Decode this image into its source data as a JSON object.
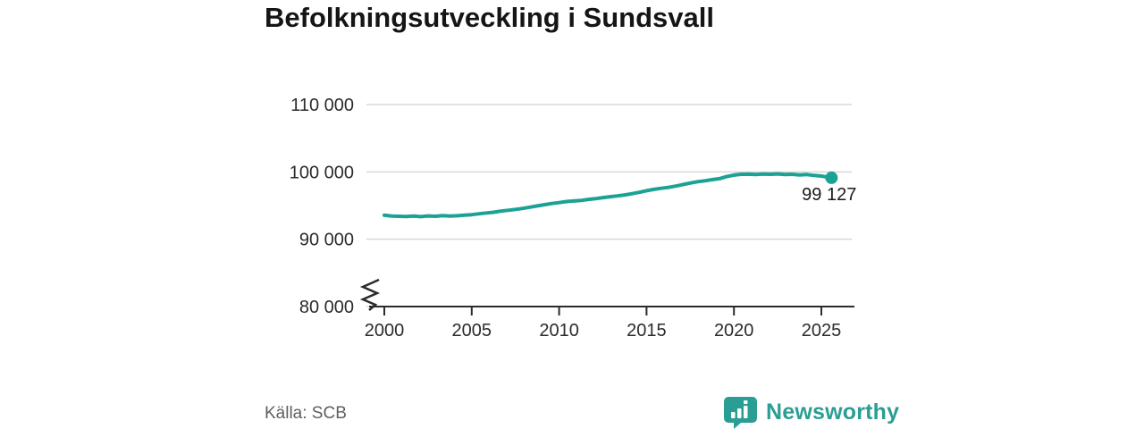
{
  "title": "Befolkningsutveckling i Sundsvall",
  "source": "Källa: SCB",
  "branding": {
    "name": "Newsworthy",
    "logo_icon": "speech-bubble-bar-chart-icon"
  },
  "colors": {
    "line": "#1ba294",
    "point": "#1ba294",
    "grid": "#d8d8d8",
    "axis": "#2b2b2b",
    "tick_label": "#2b2b2b",
    "annotation": "#1a1a1a",
    "title": "#151515",
    "source_text": "#5f5f5f",
    "brand": "#2a9e94",
    "logo_bar": "#ffffff"
  },
  "chart_data": {
    "type": "line",
    "title": "Befolkningsutveckling i Sundsvall",
    "series_name": "Befolkning i Sundsvall",
    "xlabel": "",
    "ylabel": "",
    "grid": "horizontal",
    "legend": "none",
    "axis_break_at_bottom": true,
    "xlim": [
      1999.5,
      2026.8
    ],
    "ylim": [
      80000,
      112500
    ],
    "x_ticks": [
      2000,
      2005,
      2010,
      2015,
      2020,
      2025
    ],
    "x_tick_labels": [
      "2000",
      "2005",
      "2010",
      "2015",
      "2020",
      "2025"
    ],
    "y_ticks": [
      80000,
      90000,
      100000,
      110000
    ],
    "y_tick_labels": [
      "80 000",
      "90 000",
      "100 000",
      "110 000"
    ],
    "last_value": 99127,
    "last_point_label": "99 127",
    "x": [
      2000.0,
      2000.42,
      2000.83,
      2001.25,
      2001.67,
      2002.08,
      2002.5,
      2002.92,
      2003.33,
      2003.75,
      2004.17,
      2004.58,
      2005.0,
      2005.42,
      2005.83,
      2006.25,
      2006.67,
      2007.08,
      2007.5,
      2007.92,
      2008.33,
      2008.75,
      2009.17,
      2009.58,
      2010.0,
      2010.42,
      2010.83,
      2011.25,
      2011.67,
      2012.08,
      2012.5,
      2012.92,
      2013.33,
      2013.75,
      2014.17,
      2014.58,
      2015.0,
      2015.42,
      2015.83,
      2016.25,
      2016.67,
      2017.08,
      2017.5,
      2017.92,
      2018.33,
      2018.75,
      2019.17,
      2019.58,
      2020.0,
      2020.42,
      2020.83,
      2021.25,
      2021.67,
      2022.08,
      2022.5,
      2022.92,
      2023.33,
      2023.75,
      2024.17,
      2024.58,
      2025.0,
      2025.25,
      2025.58
    ],
    "values": [
      93560,
      93450,
      93410,
      93380,
      93430,
      93350,
      93460,
      93410,
      93510,
      93450,
      93490,
      93560,
      93640,
      93780,
      93900,
      94010,
      94180,
      94290,
      94430,
      94580,
      94760,
      94950,
      95130,
      95300,
      95440,
      95600,
      95680,
      95760,
      95910,
      96020,
      96180,
      96310,
      96430,
      96580,
      96770,
      96970,
      97200,
      97400,
      97560,
      97700,
      97890,
      98120,
      98340,
      98540,
      98680,
      98850,
      99000,
      99300,
      99530,
      99640,
      99660,
      99620,
      99680,
      99640,
      99700,
      99620,
      99650,
      99540,
      99600,
      99470,
      99380,
      99270,
      99127
    ]
  }
}
